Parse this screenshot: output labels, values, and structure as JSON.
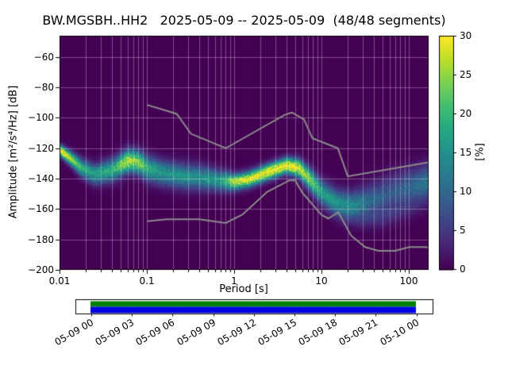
{
  "figure": {
    "title": "BW.MGSBH..HH2   2025-05-09 -- 2025-05-09  (48/48 segments)"
  },
  "chart_data": {
    "type": "heatmap",
    "subtype": "ppsd_probabilistic_power_spectral_density",
    "station": "BW.MGSBH..HH2",
    "date_range": "2025-05-09 -- 2025-05-09",
    "segments": "48/48",
    "title": "BW.MGSBH..HH2   2025-05-09 -- 2025-05-09  (48/48 segments)",
    "xlabel": "Period [s]",
    "ylabel": "Amplitude [m²/s⁴/Hz] [dB]",
    "xscale": "log",
    "xlim": [
      0.01,
      170
    ],
    "ylim": [
      -200,
      -46
    ],
    "x_ticks": [
      0.01,
      0.1,
      1,
      10,
      100
    ],
    "x_tick_labels": [
      "0.01",
      "0.1",
      "1",
      "10",
      "100"
    ],
    "y_ticks": [
      -60,
      -80,
      -100,
      -120,
      -140,
      -160,
      -180,
      -200
    ],
    "y_tick_labels": [
      "−60",
      "−80",
      "−100",
      "−120",
      "−140",
      "−160",
      "−180",
      "−200"
    ],
    "grid": true,
    "legend": false,
    "background_color": "#440154",
    "grid_color": "rgba(255,255,255,0.38)",
    "colormap": "viridis",
    "colorbar": {
      "label": "[%]",
      "min": 0,
      "max": 30,
      "ticks": [
        0,
        5,
        10,
        15,
        20,
        25,
        30
      ],
      "tick_labels": [
        "0",
        "5",
        "10",
        "15",
        "20",
        "25",
        "30"
      ]
    },
    "ppsd_mode": {
      "description": "mode of PPSD histogram (period s vs amplitude dB), peak probability % and spread",
      "periods": [
        0.01,
        0.013,
        0.018,
        0.025,
        0.04,
        0.06,
        0.08,
        0.1,
        0.15,
        0.25,
        0.4,
        0.7,
        1.0,
        1.5,
        2.5,
        4.0,
        5.5,
        7.5,
        10,
        15,
        22,
        35,
        60,
        100,
        170
      ],
      "db": [
        -121,
        -126,
        -133,
        -137,
        -134,
        -128,
        -129,
        -133,
        -136,
        -138,
        -139,
        -141,
        -142,
        -140,
        -135,
        -131,
        -133,
        -141,
        -149,
        -156,
        -158,
        -155,
        -150,
        -146,
        -142
      ],
      "peak_percent": [
        30,
        26,
        18,
        16,
        18,
        26,
        24,
        18,
        15,
        15,
        14,
        16,
        26,
        28,
        30,
        30,
        28,
        22,
        16,
        15,
        14,
        10,
        8,
        9,
        12
      ],
      "spread_db": [
        2.5,
        3,
        4,
        4.5,
        5,
        5,
        5,
        5.5,
        5.5,
        5.5,
        5.5,
        4.5,
        3.5,
        3.5,
        3.5,
        3.5,
        4,
        5,
        5.5,
        6,
        6.5,
        7.5,
        8.5,
        8.5,
        8
      ]
    },
    "ppsd_secondary": {
      "description": "fainter lower branch of histogram at long periods",
      "periods": [
        12,
        18,
        30,
        50,
        90,
        170
      ],
      "db": [
        -157,
        -162,
        -164,
        -162,
        -157,
        -150
      ],
      "peak_percent": [
        6,
        8,
        7,
        6,
        5,
        5
      ],
      "spread_db": [
        4,
        5,
        5,
        6,
        6,
        6
      ]
    },
    "noise_models": {
      "color": "#8c8c8c",
      "nhnm": {
        "name": "Peterson NHNM",
        "periods": [
          0.1,
          0.22,
          0.32,
          0.8,
          3.8,
          4.6,
          6.3,
          7.9,
          15.4,
          20.0,
          354.8
        ],
        "db": [
          -91.5,
          -97.4,
          -110.5,
          -120.0,
          -98.0,
          -96.5,
          -101.0,
          -113.5,
          -120.0,
          -138.5,
          -126.0
        ]
      },
      "nlnm": {
        "name": "Peterson NLNM",
        "periods": [
          0.1,
          0.17,
          0.4,
          0.8,
          1.24,
          2.4,
          4.3,
          5.0,
          6.0,
          10.0,
          12.0,
          15.6,
          21.9,
          31.6,
          45.0,
          70.0,
          101.0,
          154.0,
          328.0
        ],
        "db": [
          -168.0,
          -166.7,
          -166.7,
          -169.2,
          -163.7,
          -148.6,
          -141.1,
          -141.1,
          -149.0,
          -163.8,
          -166.2,
          -162.1,
          -177.5,
          -185.0,
          -187.5,
          -187.5,
          -185.0,
          -185.0,
          -187.5
        ]
      }
    }
  },
  "timeline": {
    "tick_labels": [
      "05-09 00",
      "05-09 03",
      "05-09 06",
      "05-09 09",
      "05-09 12",
      "05-09 15",
      "05-09 18",
      "05-09 21",
      "05-10 00"
    ],
    "outline_color": "#000000",
    "fill_color": "#ffffff",
    "coverage_green": "#008000",
    "coverage_blue": "#0000e0"
  }
}
